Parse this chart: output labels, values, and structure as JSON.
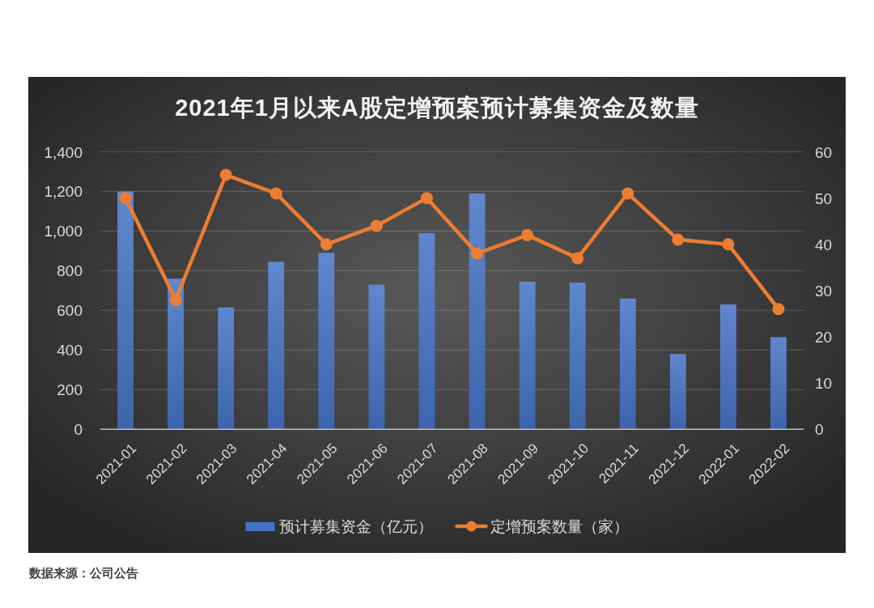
{
  "chart_data": {
    "type": "bar",
    "title": "2021年1月以来A股定增预案预计募集资金及数量",
    "categories": [
      "2021-01",
      "2021-02",
      "2021-03",
      "2021-04",
      "2021-05",
      "2021-06",
      "2021-07",
      "2021-08",
      "2021-09",
      "2021-10",
      "2021-11",
      "2021-12",
      "2022-01",
      "2022-02"
    ],
    "series": [
      {
        "name": "预计募集资金（亿元）",
        "type": "bar",
        "color": "#4472c4",
        "values": [
          1200,
          760,
          615,
          845,
          890,
          730,
          990,
          1190,
          745,
          740,
          660,
          380,
          630,
          465
        ]
      },
      {
        "name": "定增预案数量（家）",
        "type": "line",
        "axis": "y2",
        "color": "#ed7d31",
        "marker": "circle",
        "line_style": "solid",
        "values": [
          50,
          28,
          55,
          51,
          40,
          44,
          50,
          38,
          42,
          37,
          51,
          41,
          40,
          26
        ]
      }
    ],
    "ylim": [
      0,
      1400
    ],
    "yticks": [
      0,
      200,
      400,
      600,
      800,
      {
        "value": 1000,
        "label": "1,000"
      },
      {
        "value": 1200,
        "label": "1,200"
      },
      {
        "value": 1400,
        "label": "1,400"
      }
    ],
    "y2lim": [
      0,
      60
    ],
    "y2ticks": [
      0,
      10,
      20,
      30,
      40,
      50,
      60
    ],
    "grid": "y",
    "legend": "bottom",
    "annotations": [
      "数据来源：公司公告"
    ]
  }
}
